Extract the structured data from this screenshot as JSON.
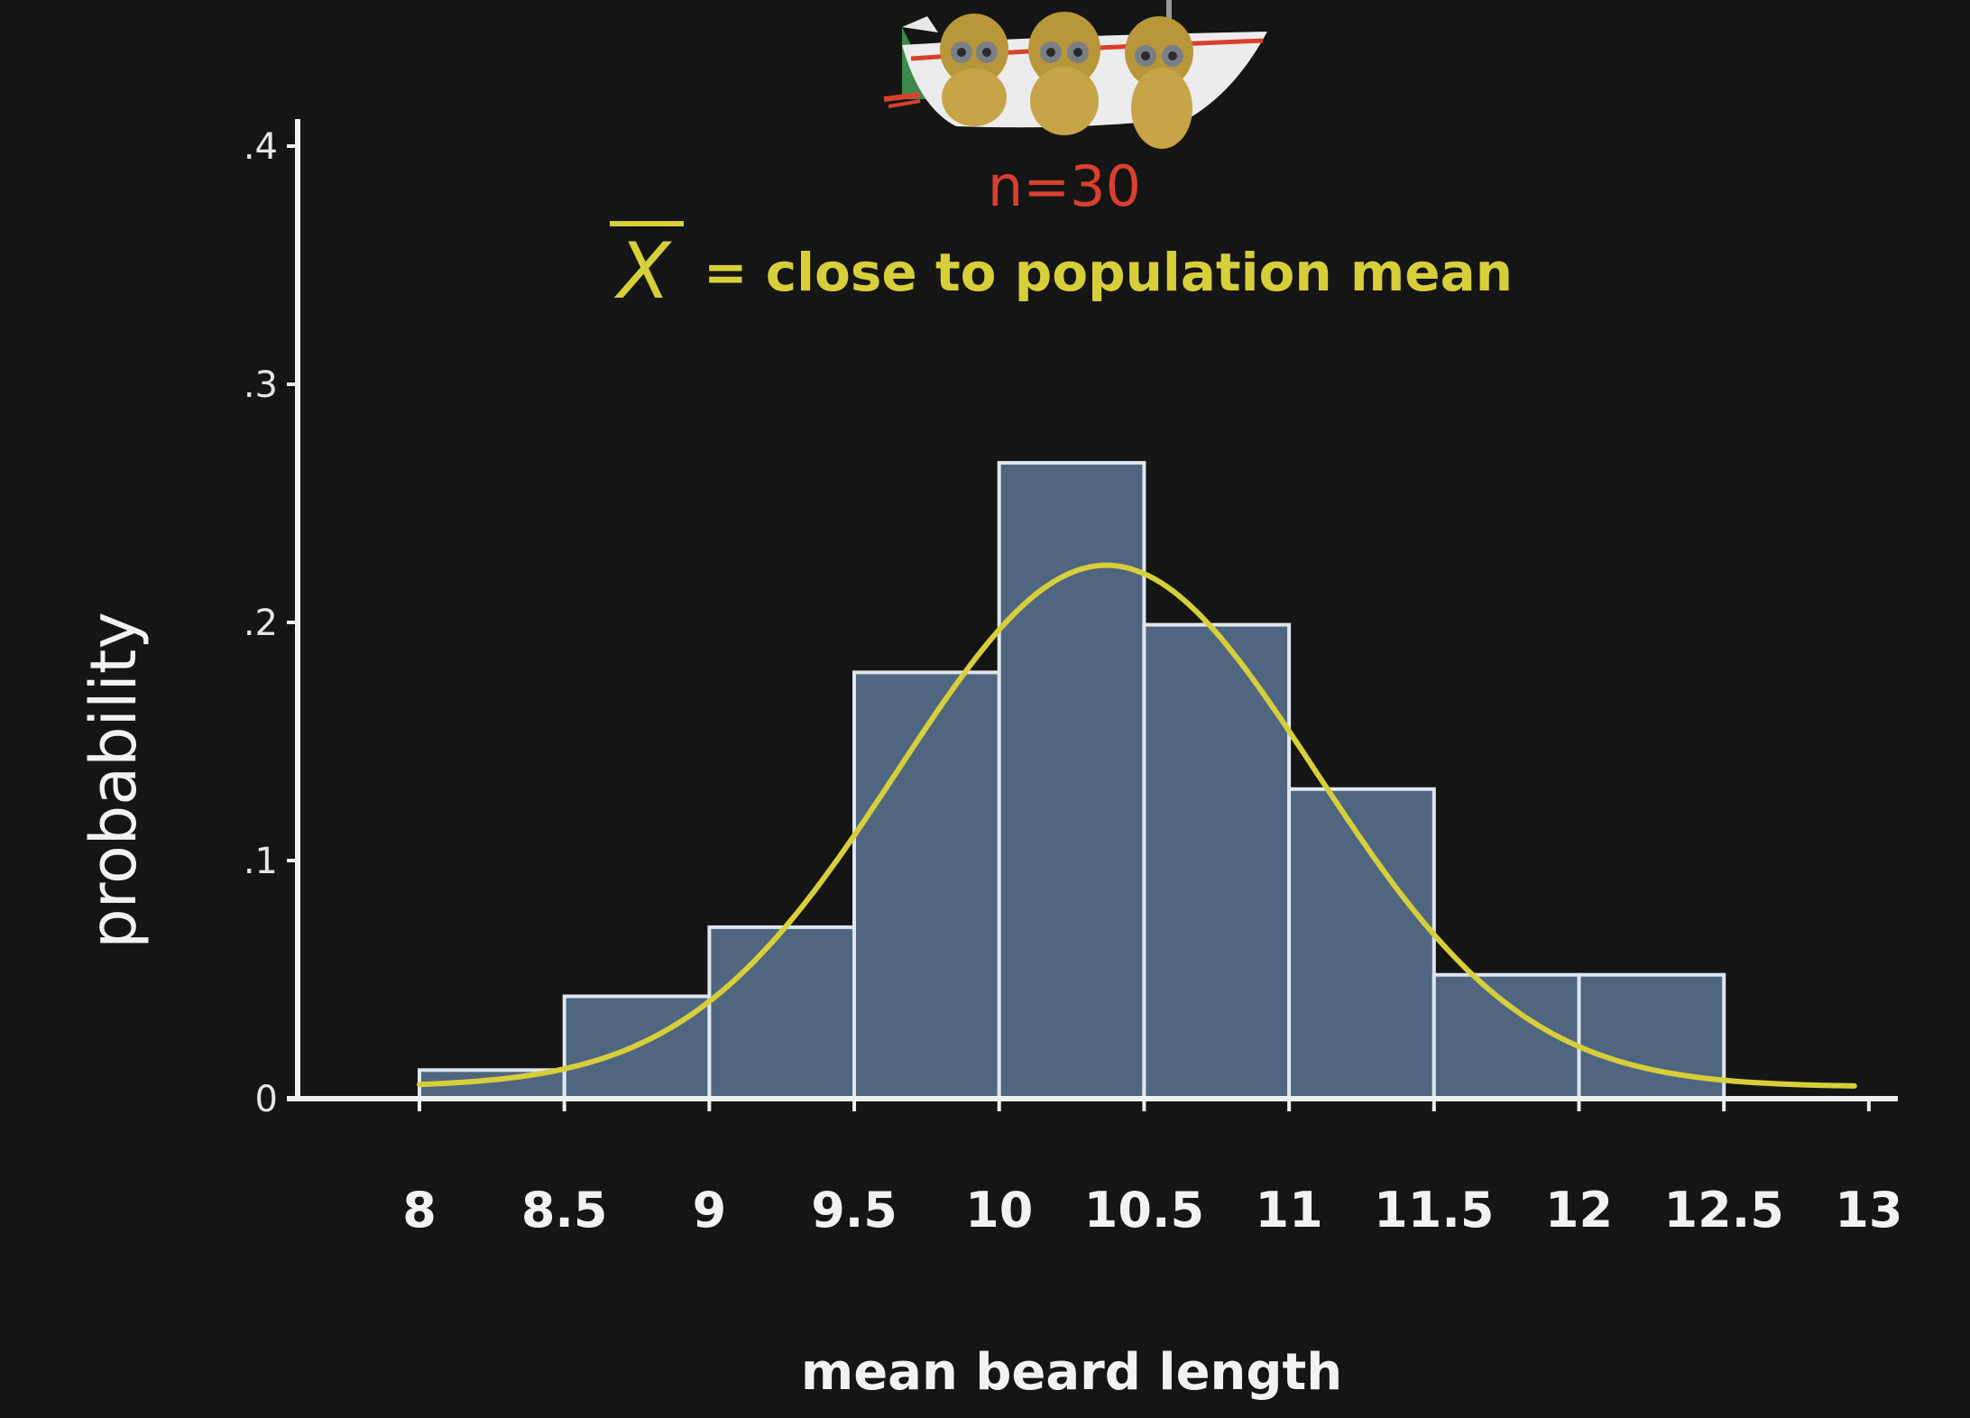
{
  "chart_data": {
    "type": "bar",
    "subtype": "histogram",
    "bins": [
      {
        "x0": 8.0,
        "x1": 8.5,
        "value": 0.012
      },
      {
        "x0": 8.5,
        "x1": 9.0,
        "value": 0.043
      },
      {
        "x0": 9.0,
        "x1": 9.5,
        "value": 0.072
      },
      {
        "x0": 9.5,
        "x1": 10.0,
        "value": 0.179
      },
      {
        "x0": 10.0,
        "x1": 10.5,
        "value": 0.267
      },
      {
        "x0": 10.5,
        "x1": 11.0,
        "value": 0.199
      },
      {
        "x0": 11.0,
        "x1": 11.5,
        "value": 0.13
      },
      {
        "x0": 11.5,
        "x1": 12.0,
        "value": 0.052
      },
      {
        "x0": 12.0,
        "x1": 12.5,
        "value": 0.052
      }
    ],
    "curve": {
      "type": "normal",
      "mean": 10.37,
      "sd": 0.72,
      "scale": 0.219,
      "offset": 0.005,
      "x_range": [
        8.0,
        12.95
      ],
      "color": "#d6cf3a"
    },
    "xlabel": "mean beard length",
    "ylabel": "probability",
    "xlim": [
      7.58,
      13.1
    ],
    "ylim": [
      0,
      0.4
    ],
    "x_ticks": [
      "8",
      "8.5",
      "9",
      "9.5",
      "10",
      "10.5",
      "11",
      "11.5",
      "12",
      "12.5",
      "13"
    ],
    "x_tick_values": [
      8,
      8.5,
      9,
      9.5,
      10,
      10.5,
      11,
      11.5,
      12,
      12.5,
      13
    ],
    "y_ticks": [
      "0",
      ".1",
      ".2",
      ".3",
      ".4"
    ],
    "y_tick_values": [
      0,
      0.1,
      0.2,
      0.3,
      0.4
    ],
    "grid": false,
    "bar_color": "#4f6580",
    "bar_edge_color": "#dfe6ee",
    "axis_color": "#f0f0f0"
  },
  "annotations": {
    "sample_size": "n=30",
    "symbol": "X",
    "mean_statement": "= close to population mean",
    "sample_size_color": "#d9402f",
    "mean_color": "#d6cf3a"
  },
  "illustration": {
    "icon": "boat-with-three-bearded-people-icon"
  }
}
